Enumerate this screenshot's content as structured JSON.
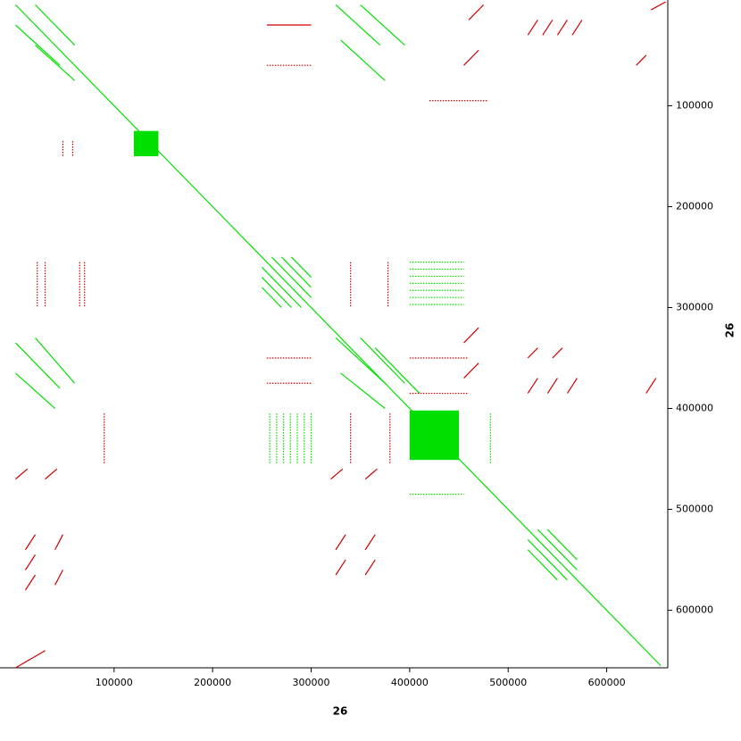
{
  "chart_data": {
    "type": "dotplot",
    "xlabel": "26",
    "ylabel": "26",
    "xlim": [
      -14000,
      662000
    ],
    "ylim": [
      -3000,
      657000
    ],
    "y_inverted": true,
    "xticks": [
      100000,
      200000,
      300000,
      400000,
      500000,
      600000
    ],
    "yticks": [
      100000,
      200000,
      300000,
      400000,
      500000,
      600000
    ],
    "series": [
      {
        "color": "#00e000",
        "segments": [
          [
            0,
            0,
            655000,
            655000
          ],
          [
            0,
            20000,
            45000,
            60000
          ],
          [
            20000,
            0,
            60000,
            40000
          ],
          [
            20000,
            40000,
            60000,
            75000
          ],
          [
            325000,
            0,
            370000,
            40000
          ],
          [
            350000,
            0,
            395000,
            40000
          ],
          [
            330000,
            35000,
            375000,
            75000
          ],
          [
            0,
            335000,
            45000,
            380000
          ],
          [
            20000,
            330000,
            60000,
            375000
          ],
          [
            0,
            365000,
            40000,
            400000
          ],
          [
            325000,
            330000,
            375000,
            375000
          ],
          [
            350000,
            330000,
            395000,
            375000
          ],
          [
            330000,
            365000,
            375000,
            400000
          ],
          [
            365000,
            340000,
            410000,
            385000
          ],
          [
            260000,
            250000,
            300000,
            290000
          ],
          [
            270000,
            250000,
            300000,
            280000
          ],
          [
            280000,
            250000,
            300000,
            270000
          ],
          [
            250000,
            260000,
            290000,
            300000
          ],
          [
            250000,
            270000,
            280000,
            300000
          ],
          [
            250000,
            280000,
            270000,
            300000
          ],
          [
            530000,
            520000,
            570000,
            560000
          ],
          [
            540000,
            520000,
            570000,
            550000
          ],
          [
            520000,
            530000,
            560000,
            570000
          ],
          [
            520000,
            540000,
            550000,
            570000
          ],
          [
            400000,
            255000,
            455000,
            255000
          ],
          [
            400000,
            262000,
            455000,
            262000
          ],
          [
            400000,
            269000,
            455000,
            269000
          ],
          [
            400000,
            276000,
            455000,
            276000
          ],
          [
            400000,
            283000,
            455000,
            283000
          ],
          [
            400000,
            290000,
            455000,
            290000
          ],
          [
            400000,
            297000,
            455000,
            297000
          ],
          [
            258000,
            405000,
            258000,
            455000
          ],
          [
            265000,
            405000,
            265000,
            455000
          ],
          [
            272000,
            405000,
            272000,
            455000
          ],
          [
            279000,
            405000,
            279000,
            455000
          ],
          [
            286000,
            405000,
            286000,
            455000
          ],
          [
            293000,
            405000,
            293000,
            455000
          ],
          [
            300000,
            405000,
            300000,
            455000
          ],
          [
            400000,
            485000,
            455000,
            485000
          ],
          [
            482000,
            405000,
            482000,
            455000
          ]
        ],
        "blocks": [
          [
            120000,
            125000,
            145000,
            150000
          ],
          [
            400000,
            402000,
            450000,
            451000
          ]
        ]
      },
      {
        "color": "#cc0000",
        "segments": [
          [
            255000,
            20000,
            300000,
            20000
          ],
          [
            255000,
            60000,
            300000,
            60000
          ],
          [
            420000,
            95000,
            480000,
            95000
          ],
          [
            255000,
            350000,
            300000,
            350000
          ],
          [
            255000,
            375000,
            300000,
            375000
          ],
          [
            400000,
            350000,
            460000,
            350000
          ],
          [
            400000,
            385000,
            460000,
            385000
          ],
          [
            22000,
            255000,
            22000,
            300000
          ],
          [
            30000,
            255000,
            30000,
            300000
          ],
          [
            65000,
            255000,
            65000,
            300000
          ],
          [
            70000,
            255000,
            70000,
            300000
          ],
          [
            340000,
            255000,
            340000,
            300000
          ],
          [
            378000,
            255000,
            378000,
            300000
          ],
          [
            90000,
            405000,
            90000,
            455000
          ],
          [
            340000,
            405000,
            340000,
            455000
          ],
          [
            380000,
            405000,
            380000,
            455000
          ],
          [
            48000,
            135000,
            48000,
            150000
          ],
          [
            58000,
            135000,
            58000,
            150000
          ],
          [
            460000,
            15000,
            475000,
            0
          ],
          [
            455000,
            60000,
            470000,
            45000
          ],
          [
            455000,
            335000,
            470000,
            320000
          ],
          [
            455000,
            370000,
            470000,
            355000
          ],
          [
            520000,
            30000,
            530000,
            15000
          ],
          [
            535000,
            30000,
            545000,
            15000
          ],
          [
            550000,
            30000,
            560000,
            15000
          ],
          [
            565000,
            30000,
            575000,
            15000
          ],
          [
            520000,
            385000,
            530000,
            370000
          ],
          [
            540000,
            385000,
            550000,
            370000
          ],
          [
            560000,
            385000,
            570000,
            370000
          ],
          [
            520000,
            350000,
            530000,
            340000
          ],
          [
            545000,
            350000,
            555000,
            340000
          ],
          [
            0,
            470000,
            12000,
            460000
          ],
          [
            30000,
            470000,
            42000,
            460000
          ],
          [
            320000,
            470000,
            332000,
            460000
          ],
          [
            355000,
            470000,
            367000,
            460000
          ],
          [
            10000,
            540000,
            20000,
            525000
          ],
          [
            10000,
            560000,
            20000,
            545000
          ],
          [
            10000,
            580000,
            20000,
            565000
          ],
          [
            40000,
            540000,
            48000,
            525000
          ],
          [
            40000,
            575000,
            48000,
            560000
          ],
          [
            325000,
            540000,
            335000,
            525000
          ],
          [
            325000,
            565000,
            335000,
            550000
          ],
          [
            355000,
            540000,
            365000,
            525000
          ],
          [
            355000,
            565000,
            365000,
            550000
          ],
          [
            0,
            657000,
            30000,
            640000
          ],
          [
            645000,
            5000,
            660000,
            -3000
          ],
          [
            630000,
            60000,
            640000,
            50000
          ],
          [
            640000,
            385000,
            650000,
            370000
          ]
        ],
        "blocks": []
      }
    ]
  }
}
